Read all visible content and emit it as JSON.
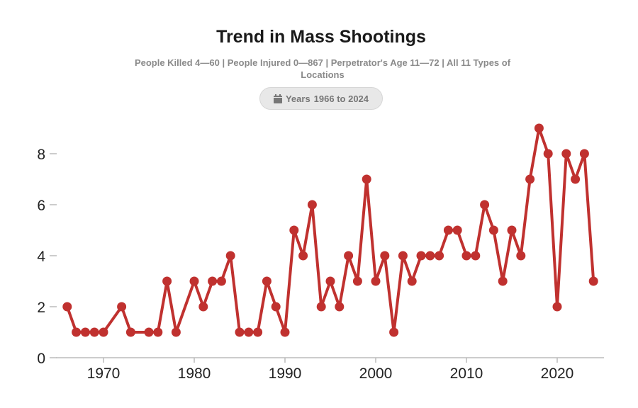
{
  "header": {
    "title": "Trend in Mass Shootings",
    "subtitle": "People Killed 4—60 | People Injured 0—867 | Perpetrator's Age 11—72 | All 11 Types of Locations",
    "badge": {
      "icon": "calendar-icon",
      "label": "Years",
      "value": "1966 to 2024"
    }
  },
  "chart_data": {
    "type": "line",
    "title": "Trend in Mass Shootings",
    "xlabel": "",
    "ylabel": "",
    "xlim": [
      1965,
      2025
    ],
    "ylim": [
      0,
      9.5
    ],
    "xticks": [
      1970,
      1980,
      1990,
      2000,
      2010,
      2020
    ],
    "yticks": [
      0,
      2,
      4,
      6,
      8
    ],
    "grid": false,
    "color": "#c0312f",
    "x": [
      1966,
      1967,
      1968,
      1969,
      1970,
      1972,
      1973,
      1975,
      1976,
      1977,
      1978,
      1980,
      1981,
      1982,
      1983,
      1984,
      1985,
      1986,
      1987,
      1988,
      1989,
      1990,
      1991,
      1992,
      1993,
      1994,
      1995,
      1996,
      1997,
      1998,
      1999,
      2000,
      2001,
      2002,
      2003,
      2004,
      2005,
      2006,
      2007,
      2008,
      2009,
      2010,
      2011,
      2012,
      2013,
      2014,
      2015,
      2016,
      2017,
      2018,
      2019,
      2020,
      2021,
      2022,
      2023,
      2024
    ],
    "y": [
      2,
      1,
      1,
      1,
      1,
      2,
      1,
      1,
      1,
      3,
      1,
      3,
      2,
      3,
      3,
      4,
      1,
      1,
      1,
      3,
      2,
      1,
      5,
      4,
      6,
      2,
      3,
      2,
      4,
      3,
      7,
      3,
      4,
      1,
      4,
      3,
      4,
      4,
      4,
      5,
      5,
      4,
      4,
      6,
      5,
      3,
      5,
      4,
      7,
      9,
      8,
      2,
      8,
      7,
      8,
      3
    ]
  }
}
